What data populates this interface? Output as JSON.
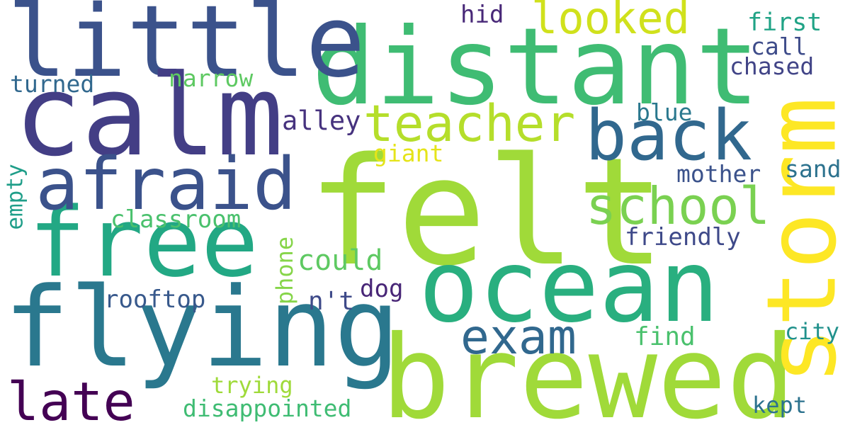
{
  "background": "#ffffff",
  "words": [
    {
      "text": "felt",
      "color": "#a0da39"
    },
    {
      "text": "distant",
      "color": "#3fbc73"
    },
    {
      "text": "brewed",
      "color": "#a0da39"
    },
    {
      "text": "ocean",
      "color": "#29af7f"
    },
    {
      "text": "little",
      "color": "#3b528b"
    },
    {
      "text": "calm",
      "color": "#433e85"
    },
    {
      "text": "flying",
      "color": "#2a788e"
    },
    {
      "text": "free",
      "color": "#22a884"
    },
    {
      "text": "storm",
      "color": "#fde725"
    },
    {
      "text": "afraid",
      "color": "#3b528b"
    },
    {
      "text": "back",
      "color": "#31688e"
    },
    {
      "text": "teacher",
      "color": "#b5de2b"
    },
    {
      "text": "school",
      "color": "#7ad151"
    },
    {
      "text": "exam",
      "color": "#31688e"
    },
    {
      "text": "late",
      "color": "#440154"
    },
    {
      "text": "looked",
      "color": "#d0e11c"
    },
    {
      "text": "classroom",
      "color": "#4ac16d"
    },
    {
      "text": "rooftop",
      "color": "#38598c"
    },
    {
      "text": "could",
      "color": "#5ec962"
    },
    {
      "text": "narrow",
      "color": "#5ec962"
    },
    {
      "text": "friendly",
      "color": "#3e4989"
    },
    {
      "text": "disappointed",
      "color": "#3fbc73"
    },
    {
      "text": "turned",
      "color": "#31688e"
    },
    {
      "text": "alley",
      "color": "#46327e"
    },
    {
      "text": "first",
      "color": "#20a386"
    },
    {
      "text": "call",
      "color": "#3e4c8a"
    },
    {
      "text": "chased",
      "color": "#414487"
    },
    {
      "text": "hid",
      "color": "#482878"
    },
    {
      "text": "blue",
      "color": "#2a788e"
    },
    {
      "text": "giant",
      "color": "#e5e419"
    },
    {
      "text": "mother",
      "color": "#3b528b"
    },
    {
      "text": "sand",
      "color": "#2c728e"
    },
    {
      "text": "dog",
      "color": "#482677"
    },
    {
      "text": "n't",
      "color": "#3e4a89"
    },
    {
      "text": "find",
      "color": "#4ac16d"
    },
    {
      "text": "city",
      "color": "#21918c"
    },
    {
      "text": "trying",
      "color": "#9fda3a"
    },
    {
      "text": "kept",
      "color": "#2c728e"
    },
    {
      "text": "phone",
      "color": "#86d549"
    },
    {
      "text": "empty",
      "color": "#1f9e89"
    }
  ]
}
